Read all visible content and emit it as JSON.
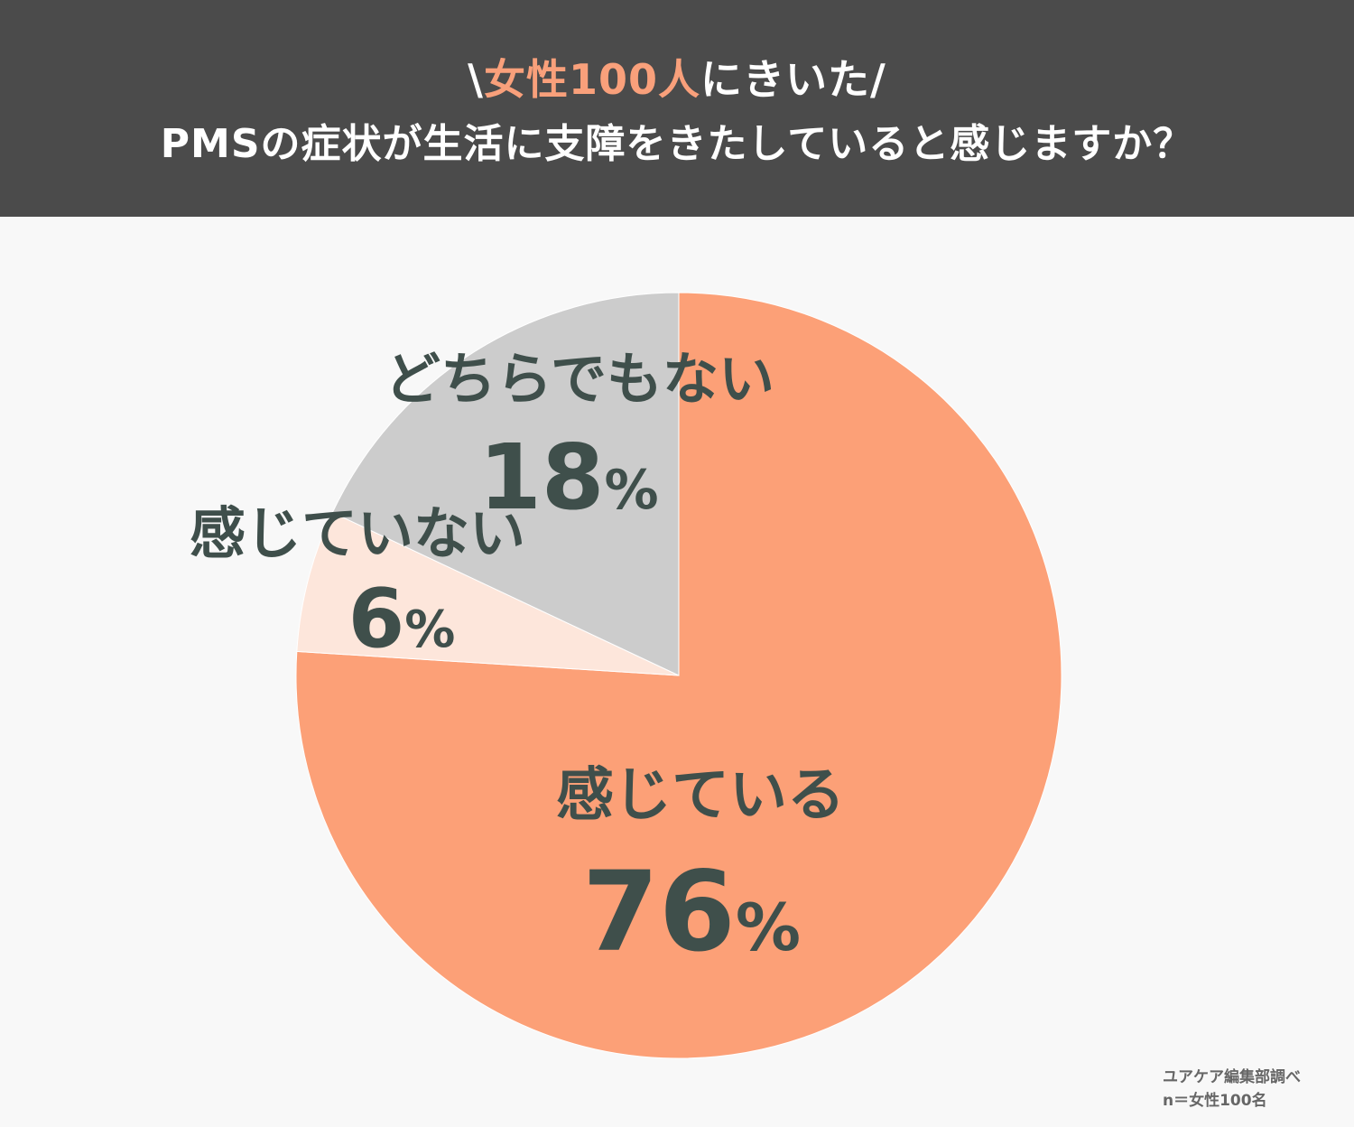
{
  "header": {
    "line1_prefix": "\\",
    "line1_accent": "女性100人",
    "line1_suffix": "にきいた/",
    "line2": "PMSの症状が生活に支障をきたしていると感じますか？"
  },
  "chart_data": {
    "type": "pie",
    "title": "PMSの症状が生活に支障をきたしていると感じますか？",
    "slices": [
      {
        "label": "感じている",
        "value": 76,
        "display": "76",
        "unit": "%",
        "color": "#fca077"
      },
      {
        "label": "感じていない",
        "value": 6,
        "display": "6",
        "unit": "%",
        "color": "#fde6db"
      },
      {
        "label": "どちらでもない",
        "value": 18,
        "display": "18",
        "unit": "%",
        "color": "#cccccc"
      }
    ],
    "start": "12 o'clock",
    "direction": "clockwise"
  },
  "source": {
    "line1": "ユアケア編集部調べ",
    "line2": "n＝女性100名"
  }
}
